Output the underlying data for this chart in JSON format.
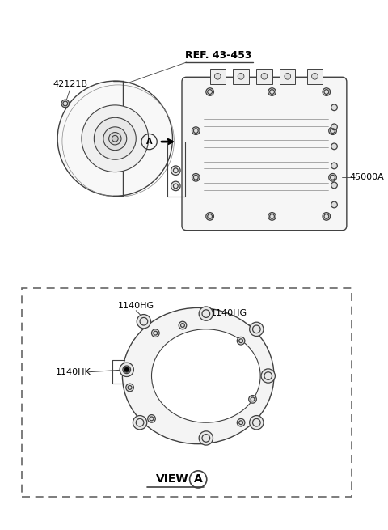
{
  "bg_color": "#ffffff",
  "line_color": "#404040",
  "text_color": "#000000",
  "labels": {
    "part_42121B": "42121B",
    "ref_label": "REF. 43-453",
    "part_45000A": "45000A",
    "part_1140HG_left": "1140HG",
    "part_1140HG_right": "1140HG",
    "part_1140HK": "1140HK",
    "view_label": "VIEW",
    "view_circle": "A",
    "circle_A": "A"
  },
  "font_size_label": 8,
  "font_size_view": 10,
  "font_size_ref": 9
}
